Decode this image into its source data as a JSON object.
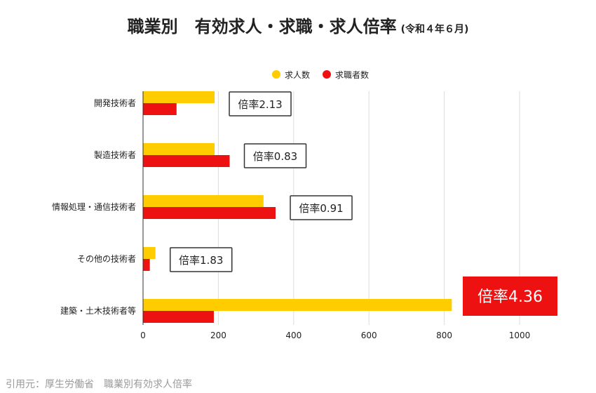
{
  "title": {
    "main": "職業別　有効求人・求職・求人倍率",
    "sub": "(令和４年６月)"
  },
  "source": "引用元：厚生労働省　職業別有効求人倍率",
  "colors": {
    "job_openings": "#ffcc00",
    "job_seekers": "#ee1111",
    "highlight_box": "#ee1111"
  },
  "chart_data": {
    "type": "bar",
    "orientation": "horizontal",
    "categories": [
      "開発技術者",
      "製造技術者",
      "情報処理・通信技術者",
      "その他の技術者",
      "建築・土木技術者等"
    ],
    "series": [
      {
        "name": "求人数",
        "values": [
          190,
          190,
          320,
          33,
          820
        ]
      },
      {
        "name": "求職者数",
        "values": [
          89,
          230,
          352,
          18,
          188
        ]
      }
    ],
    "annotations": [
      {
        "category": "開発技術者",
        "text": "倍率2.13",
        "highlight": false
      },
      {
        "category": "製造技術者",
        "text": "倍率0.83",
        "highlight": false
      },
      {
        "category": "情報処理・通信技術者",
        "text": "倍率0.91",
        "highlight": false
      },
      {
        "category": "その他の技術者",
        "text": "倍率1.83",
        "highlight": false
      },
      {
        "category": "建築・土木技術者等",
        "text": "倍率4.36",
        "highlight": true
      }
    ],
    "xlim": [
      0,
      1000
    ],
    "xticks": [
      0,
      200,
      400,
      600,
      800,
      1000
    ],
    "grid": true,
    "legend_position": "top"
  }
}
